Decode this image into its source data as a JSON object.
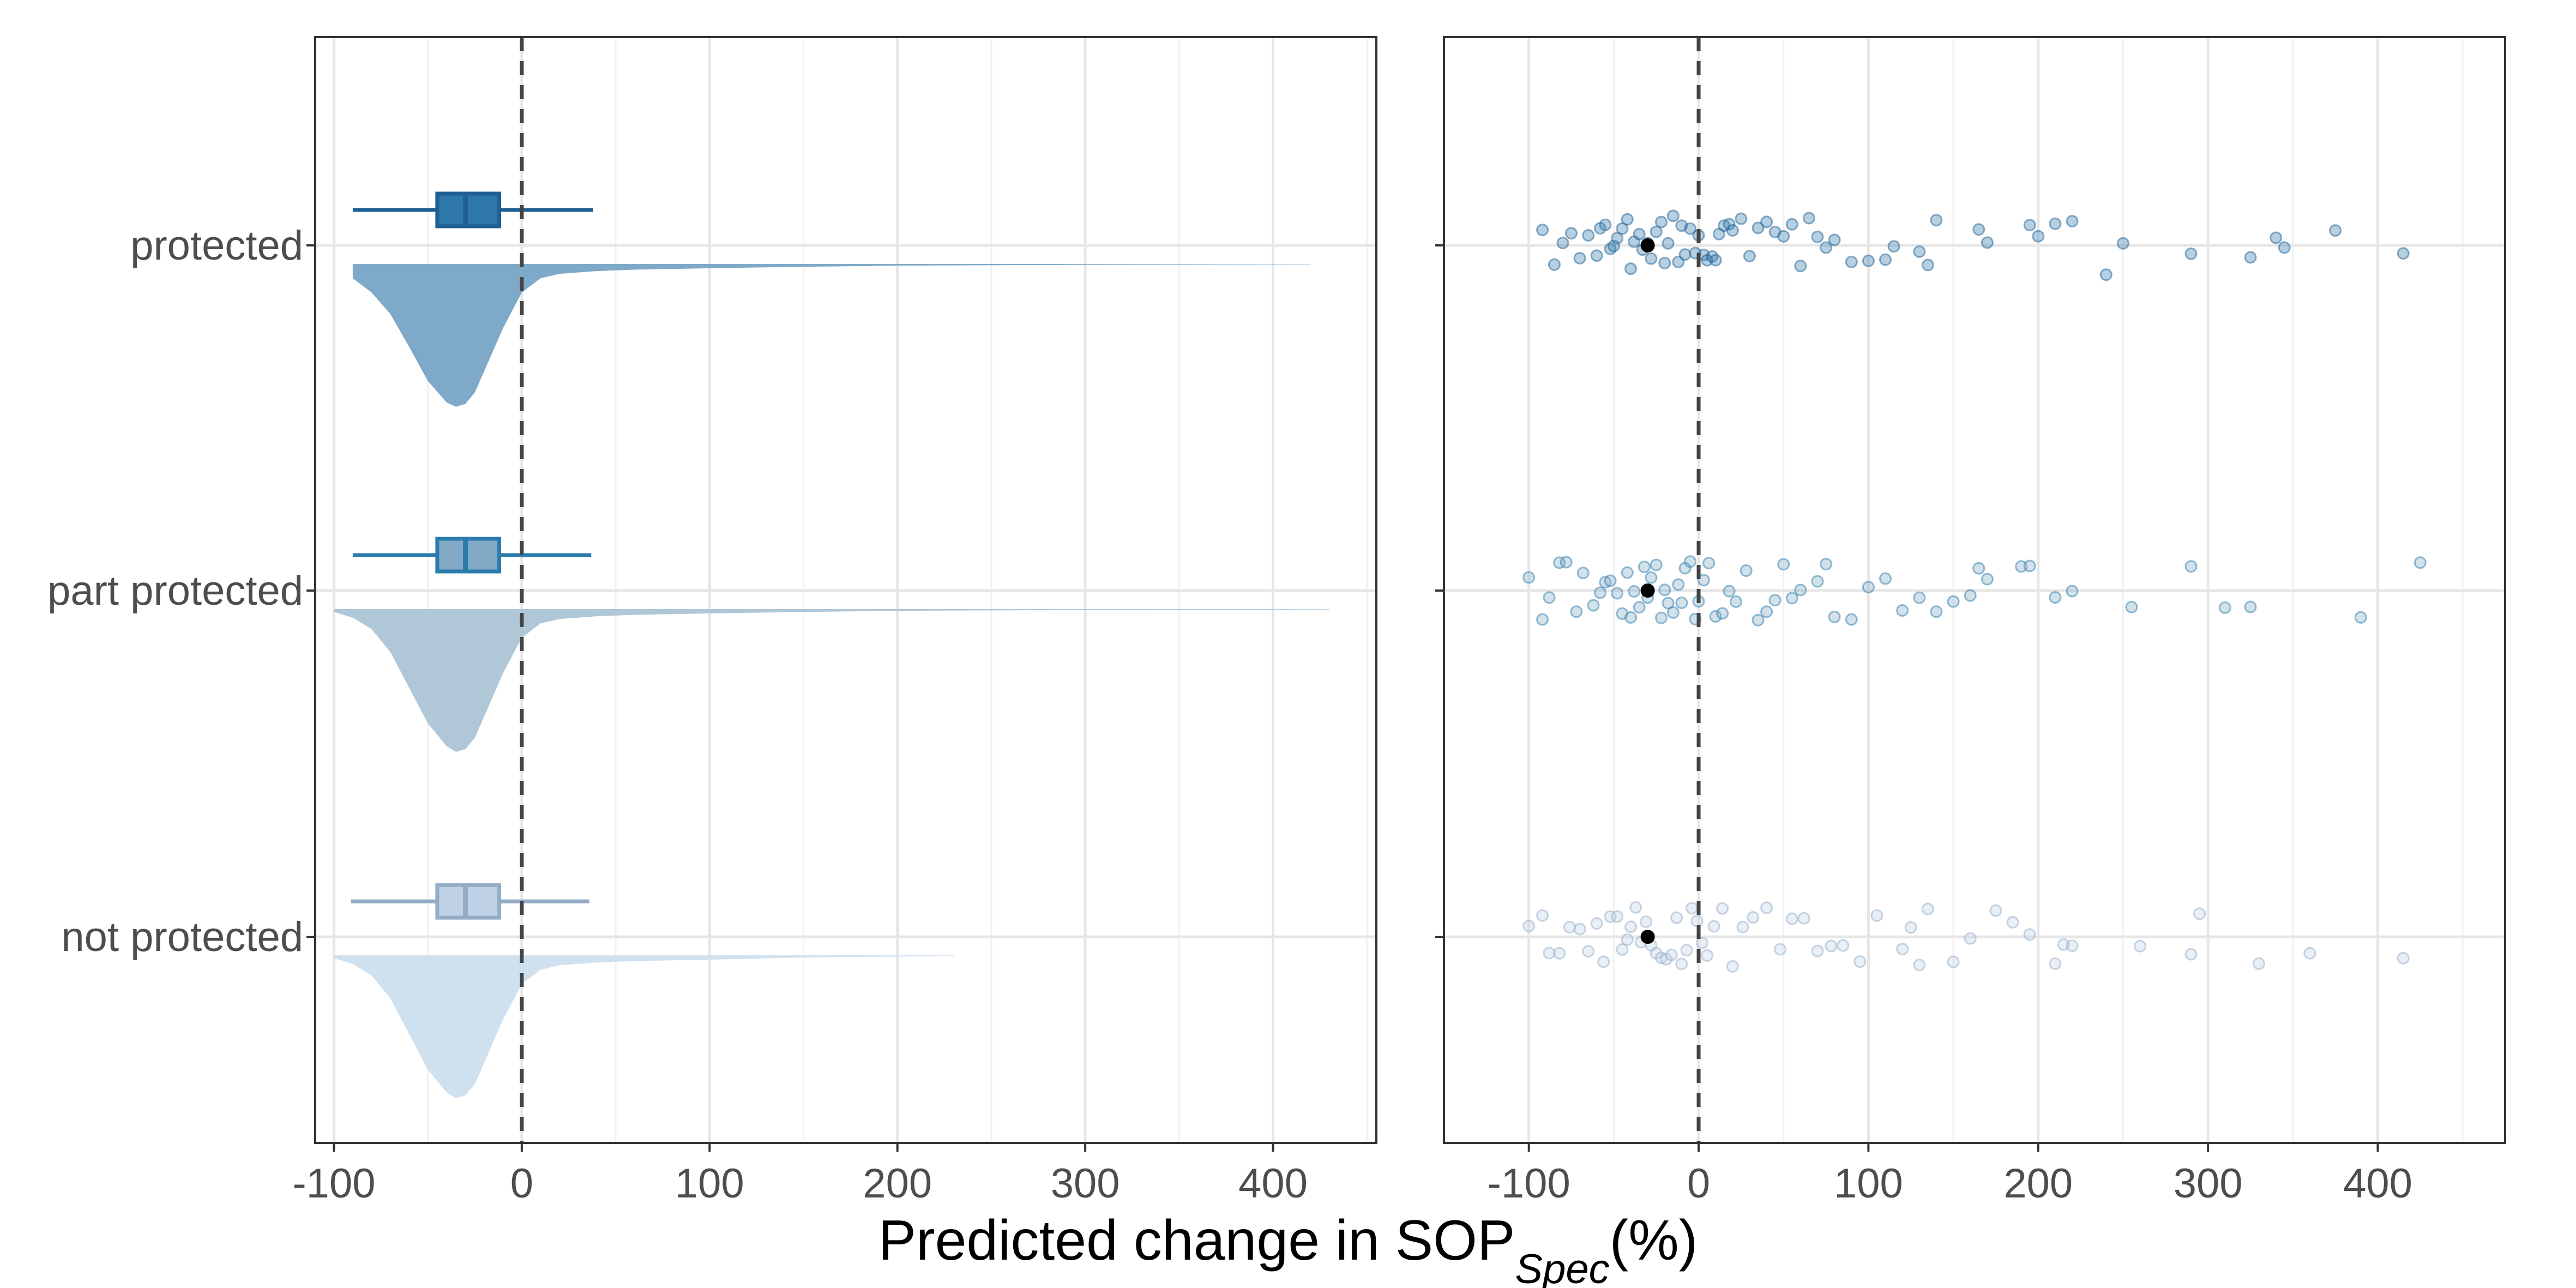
{
  "chart_data": {
    "type": "raincloud",
    "xlabel_main": "Predicted change in SOP",
    "xlabel_sub": "Spec",
    "xlabel_suffix": "(%)",
    "categories": [
      "protected",
      "part protected",
      "not protected"
    ],
    "colors": {
      "protected": {
        "line": "#1f5f93",
        "box": "#2f78ab",
        "fill": "#7fa9c9"
      },
      "part protected": {
        "line": "#2b7cad",
        "box": "#82a9c6",
        "fill": "#afc7d7"
      },
      "not protected": {
        "line": "#94acc5",
        "box": "#bfd2e6",
        "fill": "#cfe0ef"
      }
    },
    "panels": [
      {
        "name": "distribution",
        "xlim": [
          -110,
          455
        ],
        "xticks": [
          -100,
          0,
          100,
          200,
          300,
          400
        ],
        "xtick_labels": [
          "-100",
          "0",
          "100",
          "200",
          "300",
          "400"
        ],
        "reference_line_x": 0,
        "grid": true,
        "boxplots": [
          {
            "category": "protected",
            "whisker_low": -90,
            "q1": -45,
            "median": -30,
            "q3": -12,
            "whisker_high": 38
          },
          {
            "category": "part protected",
            "whisker_low": -90,
            "q1": -45,
            "median": -30,
            "q3": -12,
            "whisker_high": 37
          },
          {
            "category": "not protected",
            "whisker_low": -91,
            "q1": -45,
            "median": -30,
            "q3": -12,
            "whisker_high": 36
          }
        ],
        "densities": [
          {
            "category": "protected",
            "x": [
              -90,
              -80,
              -70,
              -60,
              -50,
              -40,
              -35,
              -30,
              -25,
              -20,
              -10,
              0,
              10,
              20,
              40,
              60,
              100,
              150,
              200,
              300,
              420
            ],
            "density": [
              0.1,
              0.2,
              0.35,
              0.58,
              0.82,
              0.97,
              1.0,
              0.98,
              0.9,
              0.75,
              0.45,
              0.2,
              0.1,
              0.07,
              0.05,
              0.04,
              0.03,
              0.02,
              0.012,
              0.006,
              0.003
            ]
          },
          {
            "category": "part protected",
            "x": [
              -100,
              -90,
              -80,
              -70,
              -60,
              -50,
              -40,
              -35,
              -30,
              -25,
              -20,
              -10,
              0,
              10,
              20,
              40,
              60,
              100,
              150,
              200,
              300,
              430
            ],
            "density": [
              0.02,
              0.06,
              0.14,
              0.3,
              0.55,
              0.8,
              0.96,
              1.0,
              0.98,
              0.9,
              0.75,
              0.45,
              0.2,
              0.1,
              0.07,
              0.05,
              0.04,
              0.03,
              0.02,
              0.012,
              0.006,
              0.003
            ]
          },
          {
            "category": "not protected",
            "x": [
              -100,
              -90,
              -80,
              -70,
              -60,
              -50,
              -40,
              -35,
              -30,
              -25,
              -20,
              -10,
              0,
              10,
              20,
              40,
              60,
              100,
              150,
              200,
              230
            ],
            "density": [
              0.02,
              0.06,
              0.14,
              0.3,
              0.55,
              0.8,
              0.96,
              1.0,
              0.98,
              0.9,
              0.75,
              0.45,
              0.2,
              0.1,
              0.07,
              0.05,
              0.04,
              0.03,
              0.015,
              0.008,
              0.004
            ]
          }
        ]
      },
      {
        "name": "points",
        "xlim": [
          -150,
          475
        ],
        "xticks": [
          -100,
          0,
          100,
          200,
          300,
          400
        ],
        "xtick_labels": [
          "-100",
          "0",
          "100",
          "200",
          "300",
          "400"
        ],
        "reference_line_x": 0,
        "grid": true,
        "medians": [
          {
            "category": "protected",
            "x": -30
          },
          {
            "category": "part protected",
            "x": -30
          },
          {
            "category": "not protected",
            "x": -30
          }
        ],
        "points": [
          {
            "category": "protected",
            "x": [
              -92,
              -85,
              -80,
              -75,
              -70,
              -65,
              -60,
              -58,
              -55,
              -52,
              -50,
              -48,
              -45,
              -42,
              -40,
              -38,
              -35,
              -33,
              -30,
              -28,
              -25,
              -22,
              -20,
              -18,
              -15,
              -12,
              -10,
              -8,
              -5,
              -2,
              0,
              3,
              5,
              8,
              10,
              12,
              15,
              18,
              20,
              25,
              30,
              35,
              40,
              45,
              50,
              55,
              60,
              65,
              70,
              75,
              80,
              90,
              100,
              110,
              115,
              130,
              135,
              140,
              165,
              170,
              195,
              200,
              210,
              220,
              240,
              250,
              290,
              325,
              340,
              345,
              375,
              415
            ]
          },
          {
            "category": "part protected",
            "x": [
              -100,
              -92,
              -88,
              -82,
              -78,
              -72,
              -68,
              -62,
              -58,
              -55,
              -52,
              -48,
              -45,
              -42,
              -40,
              -38,
              -35,
              -32,
              -30,
              -28,
              -25,
              -22,
              -20,
              -18,
              -15,
              -12,
              -10,
              -8,
              -5,
              -2,
              0,
              3,
              6,
              10,
              14,
              18,
              22,
              28,
              35,
              40,
              45,
              50,
              55,
              60,
              70,
              75,
              80,
              90,
              100,
              110,
              120,
              130,
              140,
              150,
              160,
              165,
              170,
              190,
              195,
              210,
              220,
              255,
              290,
              310,
              325,
              390,
              425
            ]
          },
          {
            "category": "not protected",
            "x": [
              -100,
              -92,
              -88,
              -82,
              -76,
              -70,
              -65,
              -60,
              -56,
              -52,
              -48,
              -45,
              -42,
              -40,
              -37,
              -34,
              -31,
              -28,
              -25,
              -22,
              -19,
              -16,
              -13,
              -10,
              -7,
              -4,
              -1,
              2,
              5,
              9,
              14,
              20,
              26,
              32,
              40,
              48,
              55,
              62,
              70,
              78,
              85,
              95,
              105,
              120,
              125,
              130,
              135,
              150,
              160,
              175,
              185,
              195,
              210,
              215,
              220,
              260,
              290,
              295,
              330,
              360,
              415
            ]
          }
        ]
      }
    ]
  }
}
